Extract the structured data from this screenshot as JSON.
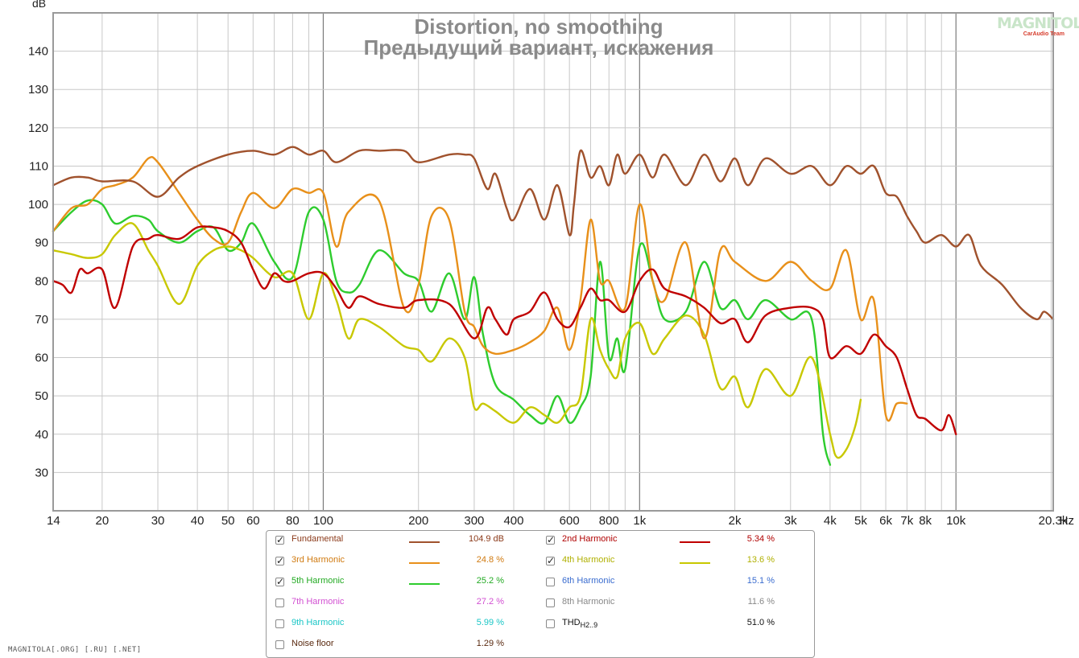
{
  "chart_data": {
    "type": "line",
    "title": "Distortion, no smoothing",
    "subtitle": "Предыдущий вариант, искажения",
    "ylabel": "dB",
    "xlabel": "Hz",
    "xscale": "log",
    "xlim": [
      14,
      20300
    ],
    "ylim": [
      20,
      150
    ],
    "x_ticks": [
      {
        "v": 14,
        "label": "14"
      },
      {
        "v": 20,
        "label": "20"
      },
      {
        "v": 30,
        "label": "30"
      },
      {
        "v": 40,
        "label": "40"
      },
      {
        "v": 50,
        "label": "50"
      },
      {
        "v": 60,
        "label": "60"
      },
      {
        "v": 80,
        "label": "80"
      },
      {
        "v": 100,
        "label": "100"
      },
      {
        "v": 200,
        "label": "200"
      },
      {
        "v": 300,
        "label": "300"
      },
      {
        "v": 400,
        "label": "400"
      },
      {
        "v": 600,
        "label": "600"
      },
      {
        "v": 800,
        "label": "800"
      },
      {
        "v": 1000,
        "label": "1k"
      },
      {
        "v": 2000,
        "label": "2k"
      },
      {
        "v": 3000,
        "label": "3k"
      },
      {
        "v": 4000,
        "label": "4k"
      },
      {
        "v": 5000,
        "label": "5k"
      },
      {
        "v": 6000,
        "label": "6k"
      },
      {
        "v": 7000,
        "label": "7k"
      },
      {
        "v": 8000,
        "label": "8k"
      },
      {
        "v": 10000,
        "label": "10k"
      },
      {
        "v": 20300,
        "label": "20.3k"
      }
    ],
    "y_ticks": [
      30,
      40,
      50,
      60,
      70,
      80,
      90,
      100,
      110,
      120,
      130,
      140
    ],
    "grid": true,
    "legend_position": "bottom",
    "series": [
      {
        "name": "Fundamental",
        "color": "#a0522d",
        "x": [
          14,
          16,
          18,
          20,
          25,
          30,
          35,
          40,
          50,
          60,
          70,
          80,
          90,
          100,
          110,
          130,
          150,
          180,
          200,
          250,
          280,
          300,
          330,
          350,
          380,
          400,
          450,
          500,
          550,
          600,
          620,
          650,
          700,
          750,
          800,
          850,
          900,
          1000,
          1100,
          1200,
          1400,
          1600,
          1800,
          2000,
          2200,
          2500,
          3000,
          3500,
          4000,
          4500,
          5000,
          5500,
          6000,
          6500,
          7000,
          7500,
          8000,
          9000,
          10000,
          11000,
          12000,
          14000,
          16000,
          18000,
          19000,
          20300
        ],
        "y": [
          105,
          107,
          107,
          106,
          106,
          102,
          107,
          110,
          113,
          114,
          113,
          115,
          113,
          114,
          111,
          114,
          114,
          114,
          111,
          113,
          113,
          112,
          104,
          108,
          99,
          96,
          104,
          96,
          105,
          92,
          100,
          114,
          107,
          110,
          105,
          113,
          108,
          113,
          107,
          113,
          105,
          113,
          106,
          112,
          105,
          112,
          108,
          110,
          105,
          110,
          108,
          110,
          103,
          102,
          97,
          93,
          90,
          92,
          89,
          92,
          84,
          79,
          73,
          70,
          72,
          70
        ]
      },
      {
        "name": "2nd Harmonic",
        "color": "#c00000",
        "x": [
          14,
          15,
          16,
          17,
          18,
          20,
          22,
          25,
          28,
          30,
          35,
          40,
          45,
          50,
          55,
          60,
          65,
          70,
          75,
          80,
          90,
          100,
          110,
          120,
          130,
          150,
          180,
          200,
          250,
          300,
          330,
          350,
          380,
          400,
          450,
          500,
          550,
          600,
          650,
          700,
          750,
          800,
          900,
          1000,
          1100,
          1200,
          1400,
          1600,
          1800,
          2000,
          2200,
          2500,
          3000,
          3500,
          3800,
          4000,
          4500,
          5000,
          5500,
          6000,
          6500,
          7000,
          7500,
          8000,
          9000,
          9500,
          10000
        ],
        "y": [
          80,
          79,
          77,
          83,
          82,
          83,
          73,
          89,
          91,
          92,
          91,
          94,
          94,
          93,
          90,
          83,
          78,
          82,
          80,
          80,
          82,
          82,
          78,
          73,
          76,
          74,
          73,
          75,
          74,
          65,
          73,
          70,
          66,
          70,
          72,
          77,
          70,
          68,
          73,
          78,
          75,
          75,
          72,
          80,
          83,
          78,
          76,
          73,
          69,
          70,
          64,
          71,
          73,
          73,
          70,
          60,
          63,
          61,
          66,
          63,
          60,
          52,
          45,
          44,
          41,
          45,
          40
        ]
      },
      {
        "name": "3rd Harmonic",
        "color": "#e8901a",
        "x": [
          14,
          16,
          18,
          20,
          22,
          25,
          28,
          30,
          35,
          40,
          45,
          50,
          55,
          60,
          70,
          80,
          90,
          100,
          110,
          120,
          150,
          180,
          200,
          220,
          250,
          280,
          300,
          320,
          350,
          400,
          450,
          500,
          550,
          600,
          650,
          700,
          750,
          800,
          900,
          1000,
          1100,
          1200,
          1400,
          1600,
          1800,
          2000,
          2500,
          3000,
          3500,
          4000,
          4500,
          5000,
          5500,
          6000,
          6500,
          7000
        ],
        "y": [
          93,
          99,
          100,
          104,
          105,
          107,
          112,
          111,
          103,
          96,
          91,
          90,
          98,
          103,
          99,
          104,
          103,
          103,
          89,
          98,
          101,
          73,
          79,
          97,
          96,
          72,
          68,
          63,
          61,
          62,
          64,
          67,
          73,
          62,
          75,
          96,
          80,
          80,
          73,
          100,
          80,
          75,
          90,
          65,
          88,
          85,
          80,
          85,
          80,
          78,
          88,
          70,
          75,
          45,
          48,
          48
        ]
      },
      {
        "name": "4th Harmonic",
        "color": "#c8c800",
        "x": [
          14,
          16,
          18,
          20,
          22,
          25,
          28,
          30,
          35,
          40,
          45,
          50,
          55,
          60,
          70,
          80,
          90,
          100,
          110,
          120,
          130,
          150,
          180,
          200,
          220,
          250,
          280,
          300,
          320,
          350,
          400,
          450,
          500,
          550,
          600,
          650,
          700,
          750,
          800,
          850,
          900,
          1000,
          1100,
          1200,
          1400,
          1600,
          1800,
          2000,
          2200,
          2500,
          3000,
          3500,
          4000,
          4200,
          4500,
          4800,
          5000
        ],
        "y": [
          88,
          87,
          86,
          87,
          92,
          95,
          88,
          84,
          74,
          84,
          88,
          89,
          88,
          86,
          81,
          82,
          70,
          82,
          75,
          65,
          70,
          68,
          63,
          62,
          59,
          65,
          60,
          47,
          48,
          46,
          43,
          47,
          45,
          43,
          47,
          50,
          70,
          62,
          57,
          55,
          65,
          69,
          61,
          65,
          71,
          66,
          52,
          55,
          47,
          57,
          50,
          60,
          40,
          34,
          36,
          42,
          49
        ]
      },
      {
        "name": "5th Harmonic",
        "color": "#2ecc2e",
        "x": [
          14,
          16,
          18,
          20,
          22,
          25,
          28,
          30,
          35,
          40,
          45,
          50,
          55,
          60,
          70,
          80,
          90,
          100,
          110,
          120,
          130,
          150,
          180,
          200,
          220,
          250,
          280,
          300,
          320,
          350,
          400,
          450,
          500,
          550,
          600,
          650,
          700,
          750,
          800,
          850,
          900,
          1000,
          1100,
          1200,
          1400,
          1600,
          1800,
          2000,
          2200,
          2500,
          3000,
          3500,
          3800,
          4000
        ],
        "y": [
          93,
          98,
          101,
          100,
          95,
          97,
          96,
          93,
          90,
          93,
          94,
          88,
          90,
          95,
          85,
          81,
          98,
          96,
          80,
          77,
          79,
          88,
          82,
          80,
          72,
          82,
          70,
          81,
          66,
          53,
          49,
          45,
          43,
          50,
          43,
          47,
          55,
          85,
          60,
          65,
          57,
          89,
          80,
          70,
          72,
          85,
          73,
          75,
          70,
          75,
          70,
          70,
          40,
          32
        ]
      }
    ]
  },
  "legend": {
    "items": [
      {
        "label": "Fundamental",
        "checked": true,
        "value": "104.9 dB",
        "color": "#a0522d",
        "text_color": "#8b3a1a",
        "show_swatch": true
      },
      {
        "label": "2nd Harmonic",
        "checked": true,
        "value": "5.34 %",
        "color": "#c00000",
        "text_color": "#b00000",
        "show_swatch": true
      },
      {
        "label": "3rd Harmonic",
        "checked": true,
        "value": "24.8 %",
        "color": "#e8901a",
        "text_color": "#d07a10",
        "show_swatch": true
      },
      {
        "label": "4th Harmonic",
        "checked": true,
        "value": "13.6 %",
        "color": "#c8c800",
        "text_color": "#b0b000",
        "show_swatch": true
      },
      {
        "label": "5th Harmonic",
        "checked": true,
        "value": "25.2 %",
        "color": "#2ecc2e",
        "text_color": "#22aa22",
        "show_swatch": true
      },
      {
        "label": "6th Harmonic",
        "checked": false,
        "value": "15.1 %",
        "color": "#3a6ccf",
        "text_color": "#3a6ccf",
        "show_swatch": false
      },
      {
        "label": "7th Harmonic",
        "checked": false,
        "value": "27.2 %",
        "color": "#d24fd2",
        "text_color": "#d24fd2",
        "show_swatch": false
      },
      {
        "label": "8th Harmonic",
        "checked": false,
        "value": "11.6 %",
        "color": "#888888",
        "text_color": "#888888",
        "show_swatch": false
      },
      {
        "label": "9th Harmonic",
        "checked": false,
        "value": "5.99 %",
        "color": "#19c6c6",
        "text_color": "#19c6c6",
        "show_swatch": false
      },
      {
        "label": "THD",
        "sub": "H2..9",
        "checked": false,
        "value": "51.0 %",
        "color": "#000000",
        "text_color": "#111111",
        "show_swatch": false
      },
      {
        "label": "Noise floor",
        "checked": false,
        "value": "1.29 %",
        "color": "#8b3a1a",
        "text_color": "#5a2a10",
        "show_swatch": false
      }
    ]
  },
  "watermark": "MAGNITOLA[.ORG] [.RU] [.NET]",
  "logo": {
    "brand": "MAGNITOLA",
    "sub": "CarAudio Team"
  }
}
